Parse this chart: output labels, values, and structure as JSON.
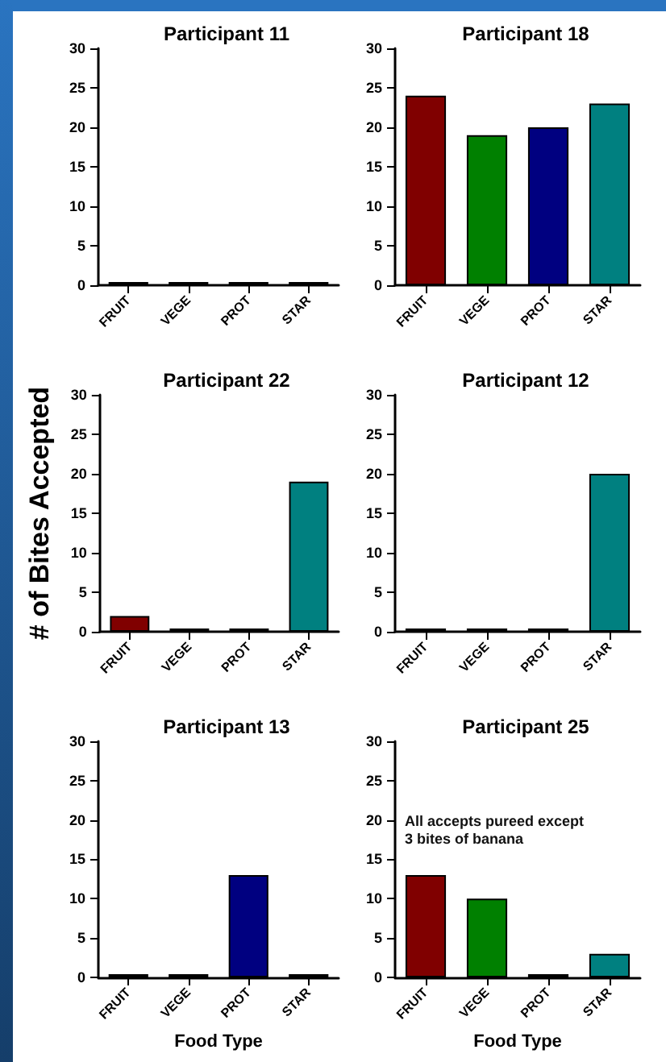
{
  "chart_data": [
    {
      "type": "bar",
      "title": "Participant 11",
      "categories": [
        "FRUIT",
        "VEGE",
        "PROT",
        "STAR"
      ],
      "values": [
        0,
        0,
        0,
        0
      ],
      "colors": [
        "#800000",
        "#008000",
        "#000080",
        "#008080"
      ],
      "ylim": [
        0,
        30
      ],
      "yticks": [
        0,
        5,
        10,
        15,
        20,
        25,
        30
      ]
    },
    {
      "type": "bar",
      "title": "Participant 18",
      "categories": [
        "FRUIT",
        "VEGE",
        "PROT",
        "STAR"
      ],
      "values": [
        24,
        19,
        20,
        23
      ],
      "colors": [
        "#800000",
        "#008000",
        "#000080",
        "#008080"
      ],
      "ylim": [
        0,
        30
      ],
      "yticks": [
        0,
        5,
        10,
        15,
        20,
        25,
        30
      ]
    },
    {
      "type": "bar",
      "title": "Participant 22",
      "ylabel": "# of Bites Accepted",
      "categories": [
        "FRUIT",
        "VEGE",
        "PROT",
        "STAR"
      ],
      "values": [
        2,
        0,
        0,
        19
      ],
      "colors": [
        "#800000",
        "#008000",
        "#000080",
        "#008080"
      ],
      "ylim": [
        0,
        30
      ],
      "yticks": [
        0,
        5,
        10,
        15,
        20,
        25,
        30
      ]
    },
    {
      "type": "bar",
      "title": "Participant 12",
      "categories": [
        "FRUIT",
        "VEGE",
        "PROT",
        "STAR"
      ],
      "values": [
        0,
        0,
        0,
        20
      ],
      "colors": [
        "#800000",
        "#008000",
        "#000080",
        "#008080"
      ],
      "ylim": [
        0,
        30
      ],
      "yticks": [
        0,
        5,
        10,
        15,
        20,
        25,
        30
      ]
    },
    {
      "type": "bar",
      "title": "Participant 13",
      "xlabel": "Food Type",
      "categories": [
        "FRUIT",
        "VEGE",
        "PROT",
        "STAR"
      ],
      "values": [
        0,
        0,
        13,
        0
      ],
      "colors": [
        "#800000",
        "#008000",
        "#000080",
        "#008080"
      ],
      "ylim": [
        0,
        30
      ],
      "yticks": [
        0,
        5,
        10,
        15,
        20,
        25,
        30
      ]
    },
    {
      "type": "bar",
      "title": "Participant 25",
      "xlabel": "Food Type",
      "annotations": [
        "All accepts pureed except\n3 bites of banana"
      ],
      "categories": [
        "FRUIT",
        "VEGE",
        "PROT",
        "STAR"
      ],
      "values": [
        13,
        10,
        0,
        3
      ],
      "colors": [
        "#800000",
        "#008000",
        "#000080",
        "#008080"
      ],
      "ylim": [
        0,
        30
      ],
      "yticks": [
        0,
        5,
        10,
        15,
        20,
        25,
        30
      ]
    }
  ]
}
